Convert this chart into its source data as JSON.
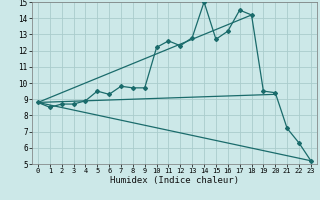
{
  "xlabel": "Humidex (Indice chaleur)",
  "bg_color": "#cce8e8",
  "grid_color": "#aacccc",
  "line_color": "#1a6b6b",
  "xlim": [
    -0.5,
    23.5
  ],
  "ylim": [
    5,
    15
  ],
  "xticks": [
    0,
    1,
    2,
    3,
    4,
    5,
    6,
    7,
    8,
    9,
    10,
    11,
    12,
    13,
    14,
    15,
    16,
    17,
    18,
    19,
    20,
    21,
    22,
    23
  ],
  "yticks": [
    5,
    6,
    7,
    8,
    9,
    10,
    11,
    12,
    13,
    14,
    15
  ],
  "series_main": {
    "x": [
      0,
      1,
      2,
      3,
      4,
      5,
      6,
      7,
      8,
      9,
      10,
      11,
      12,
      13,
      14,
      15,
      16,
      17,
      18,
      19,
      20,
      21,
      22,
      23
    ],
    "y": [
      8.8,
      8.5,
      8.7,
      8.7,
      8.9,
      9.5,
      9.3,
      9.8,
      9.7,
      9.7,
      12.2,
      12.6,
      12.3,
      12.8,
      15.0,
      12.7,
      13.2,
      14.5,
      14.2,
      9.5,
      9.4,
      7.2,
      6.3,
      5.2
    ]
  },
  "lines": [
    {
      "x": [
        0,
        18
      ],
      "y": [
        8.8,
        14.2
      ]
    },
    {
      "x": [
        0,
        20
      ],
      "y": [
        8.8,
        9.3
      ]
    },
    {
      "x": [
        0,
        23
      ],
      "y": [
        8.8,
        5.2
      ]
    }
  ]
}
